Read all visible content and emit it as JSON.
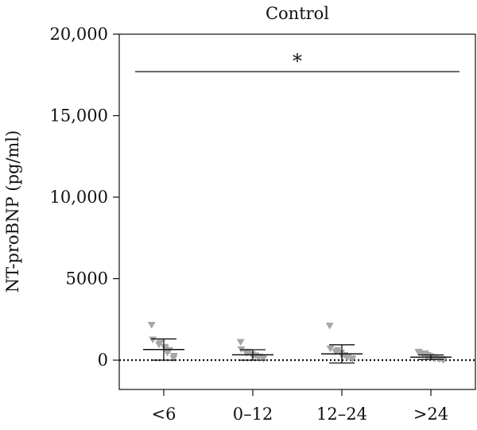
{
  "chart_data": {
    "type": "scatter",
    "title": "Control",
    "ylabel": "NT-proBNP (pg/ml)",
    "xlabel": "",
    "categories": [
      "<6",
      "0–12",
      "12–24",
      ">24"
    ],
    "ylim": [
      -1800,
      20000
    ],
    "yticks": [
      0,
      5000,
      10000,
      15000,
      20000
    ],
    "ytick_labels": [
      "0",
      "5000",
      "10,000",
      "15,000",
      "20,000"
    ],
    "grid": false,
    "reference_line": {
      "y": 0,
      "style": "dotted"
    },
    "point_color": "#a6a6a6",
    "marker": "triangle-down",
    "groups": [
      {
        "category": "<6",
        "mean": 650,
        "error_low": 0,
        "error_high": 1300,
        "points": [
          2150,
          1250,
          1050,
          950,
          800,
          700,
          600,
          450,
          250,
          100
        ]
      },
      {
        "category": "0–12",
        "mean": 330,
        "error_low": 0,
        "error_high": 640,
        "points": [
          1100,
          650,
          500,
          420,
          360,
          320,
          280,
          250,
          200,
          160,
          120,
          80
        ]
      },
      {
        "category": "12–24",
        "mean": 380,
        "error_low": -180,
        "error_high": 940,
        "points": [
          2100,
          700,
          600,
          500,
          450,
          400,
          300,
          250,
          200,
          150,
          100,
          60
        ]
      },
      {
        "category": ">24",
        "mean": 180,
        "error_low": 40,
        "error_high": 320,
        "points": [
          500,
          450,
          400,
          350,
          300,
          260,
          230,
          200,
          170,
          140,
          110,
          90,
          70,
          50,
          30,
          15
        ]
      }
    ],
    "annotations": [
      {
        "type": "significance",
        "label": "*",
        "from": "<6",
        "to": ">24",
        "y": 17700
      }
    ]
  }
}
